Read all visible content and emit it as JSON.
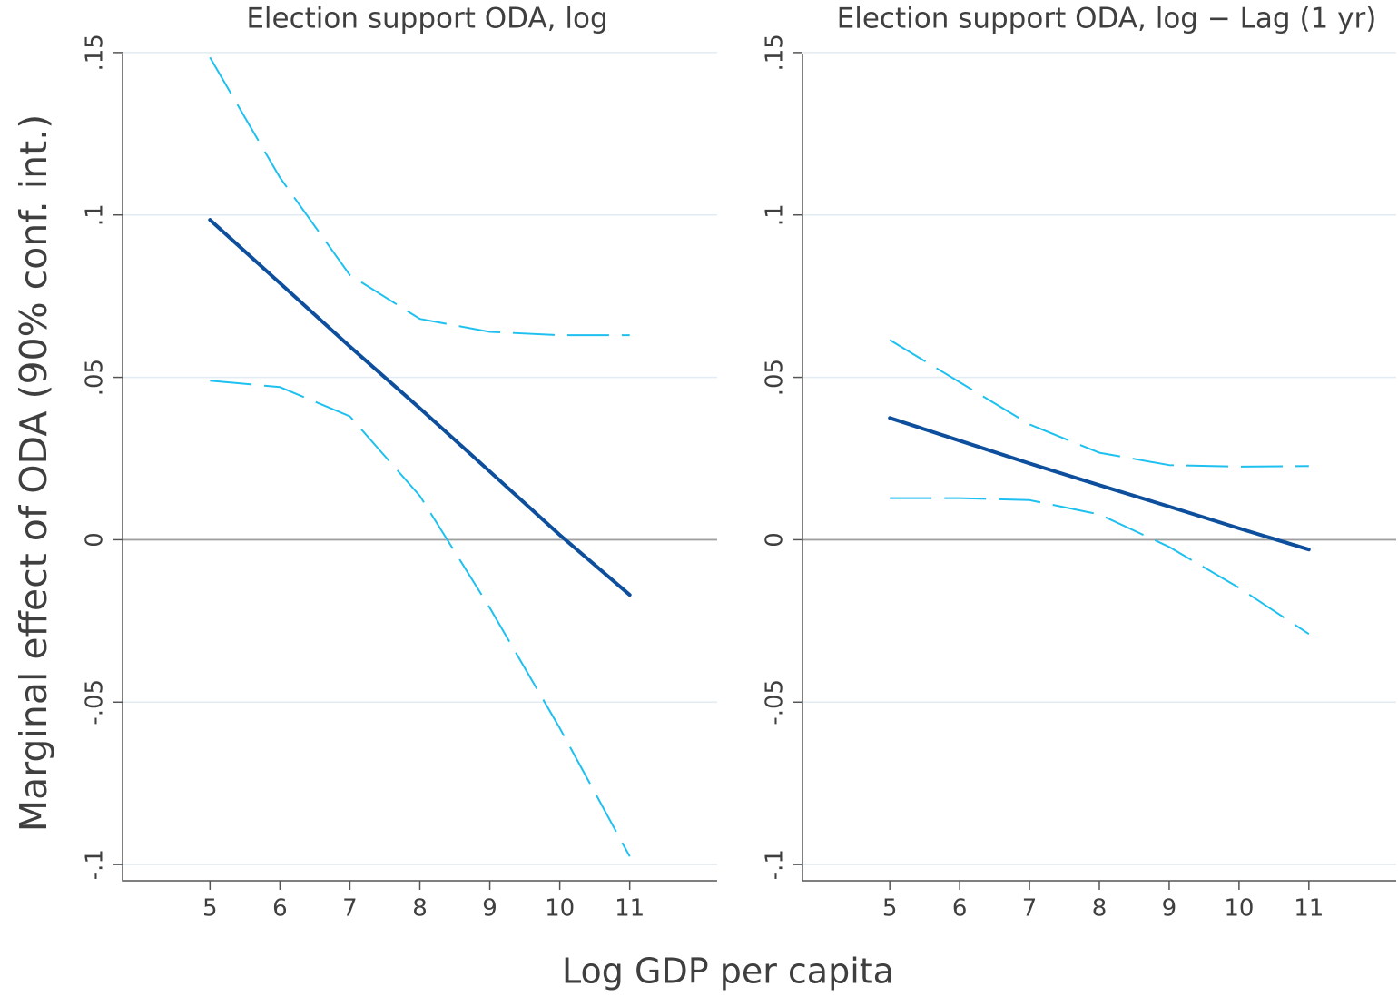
{
  "chart_data": {
    "type": "line",
    "xlabel": "Log GDP per capita",
    "ylabel": "Marginal effect of ODA (90% conf. int.)",
    "xlim": [
      3.75,
      12.25
    ],
    "ylim": [
      -0.105,
      0.155
    ],
    "x_ticks": [
      5,
      6,
      7,
      8,
      9,
      10,
      11
    ],
    "x_tick_labels": [
      "5",
      "6",
      "7",
      "8",
      "9",
      "10",
      "11"
    ],
    "y_ticks": [
      -0.1,
      -0.05,
      0,
      0.05,
      0.1,
      0.15
    ],
    "y_tick_labels": [
      "-.1",
      "-.05",
      "0",
      ".05",
      ".1",
      ".15"
    ],
    "grid": true,
    "colors": {
      "estimate": "#0d4f9c",
      "ci": "#1ec0f0",
      "grid": "#e2ecf2",
      "zero": "#a0a0a0"
    },
    "panels": [
      {
        "title": "Election support ODA, log",
        "x": [
          5,
          6,
          7,
          8,
          9,
          10,
          11
        ],
        "series": [
          {
            "name": "Marginal effect",
            "style": "solid",
            "values": [
              0.0985,
              0.079,
              0.0595,
              0.0405,
              0.021,
              0.0015,
              -0.017
            ]
          },
          {
            "name": "Upper 90% CI",
            "style": "dashed",
            "values": [
              0.1485,
              0.1115,
              0.0815,
              0.068,
              0.064,
              0.063,
              0.063
            ]
          },
          {
            "name": "Lower 90% CI",
            "style": "dashed",
            "values": [
              0.049,
              0.047,
              0.038,
              0.0135,
              -0.021,
              -0.058,
              -0.0975
            ]
          }
        ]
      },
      {
        "title": "Election support ODA, log − Lag (1 yr)",
        "x": [
          5,
          6,
          7,
          8,
          9,
          10,
          11
        ],
        "series": [
          {
            "name": "Marginal effect",
            "style": "solid",
            "values": [
              0.0375,
              0.0305,
              0.0235,
              0.0168,
              0.0102,
              0.0035,
              -0.003
            ]
          },
          {
            "name": "Upper 90% CI",
            "style": "dashed",
            "values": [
              0.0615,
              0.0485,
              0.0355,
              0.0268,
              0.023,
              0.0225,
              0.0227
            ]
          },
          {
            "name": "Lower 90% CI",
            "style": "dashed",
            "values": [
              0.0128,
              0.0128,
              0.0122,
              0.0078,
              -0.0022,
              -0.0148,
              -0.029
            ]
          }
        ]
      }
    ]
  }
}
